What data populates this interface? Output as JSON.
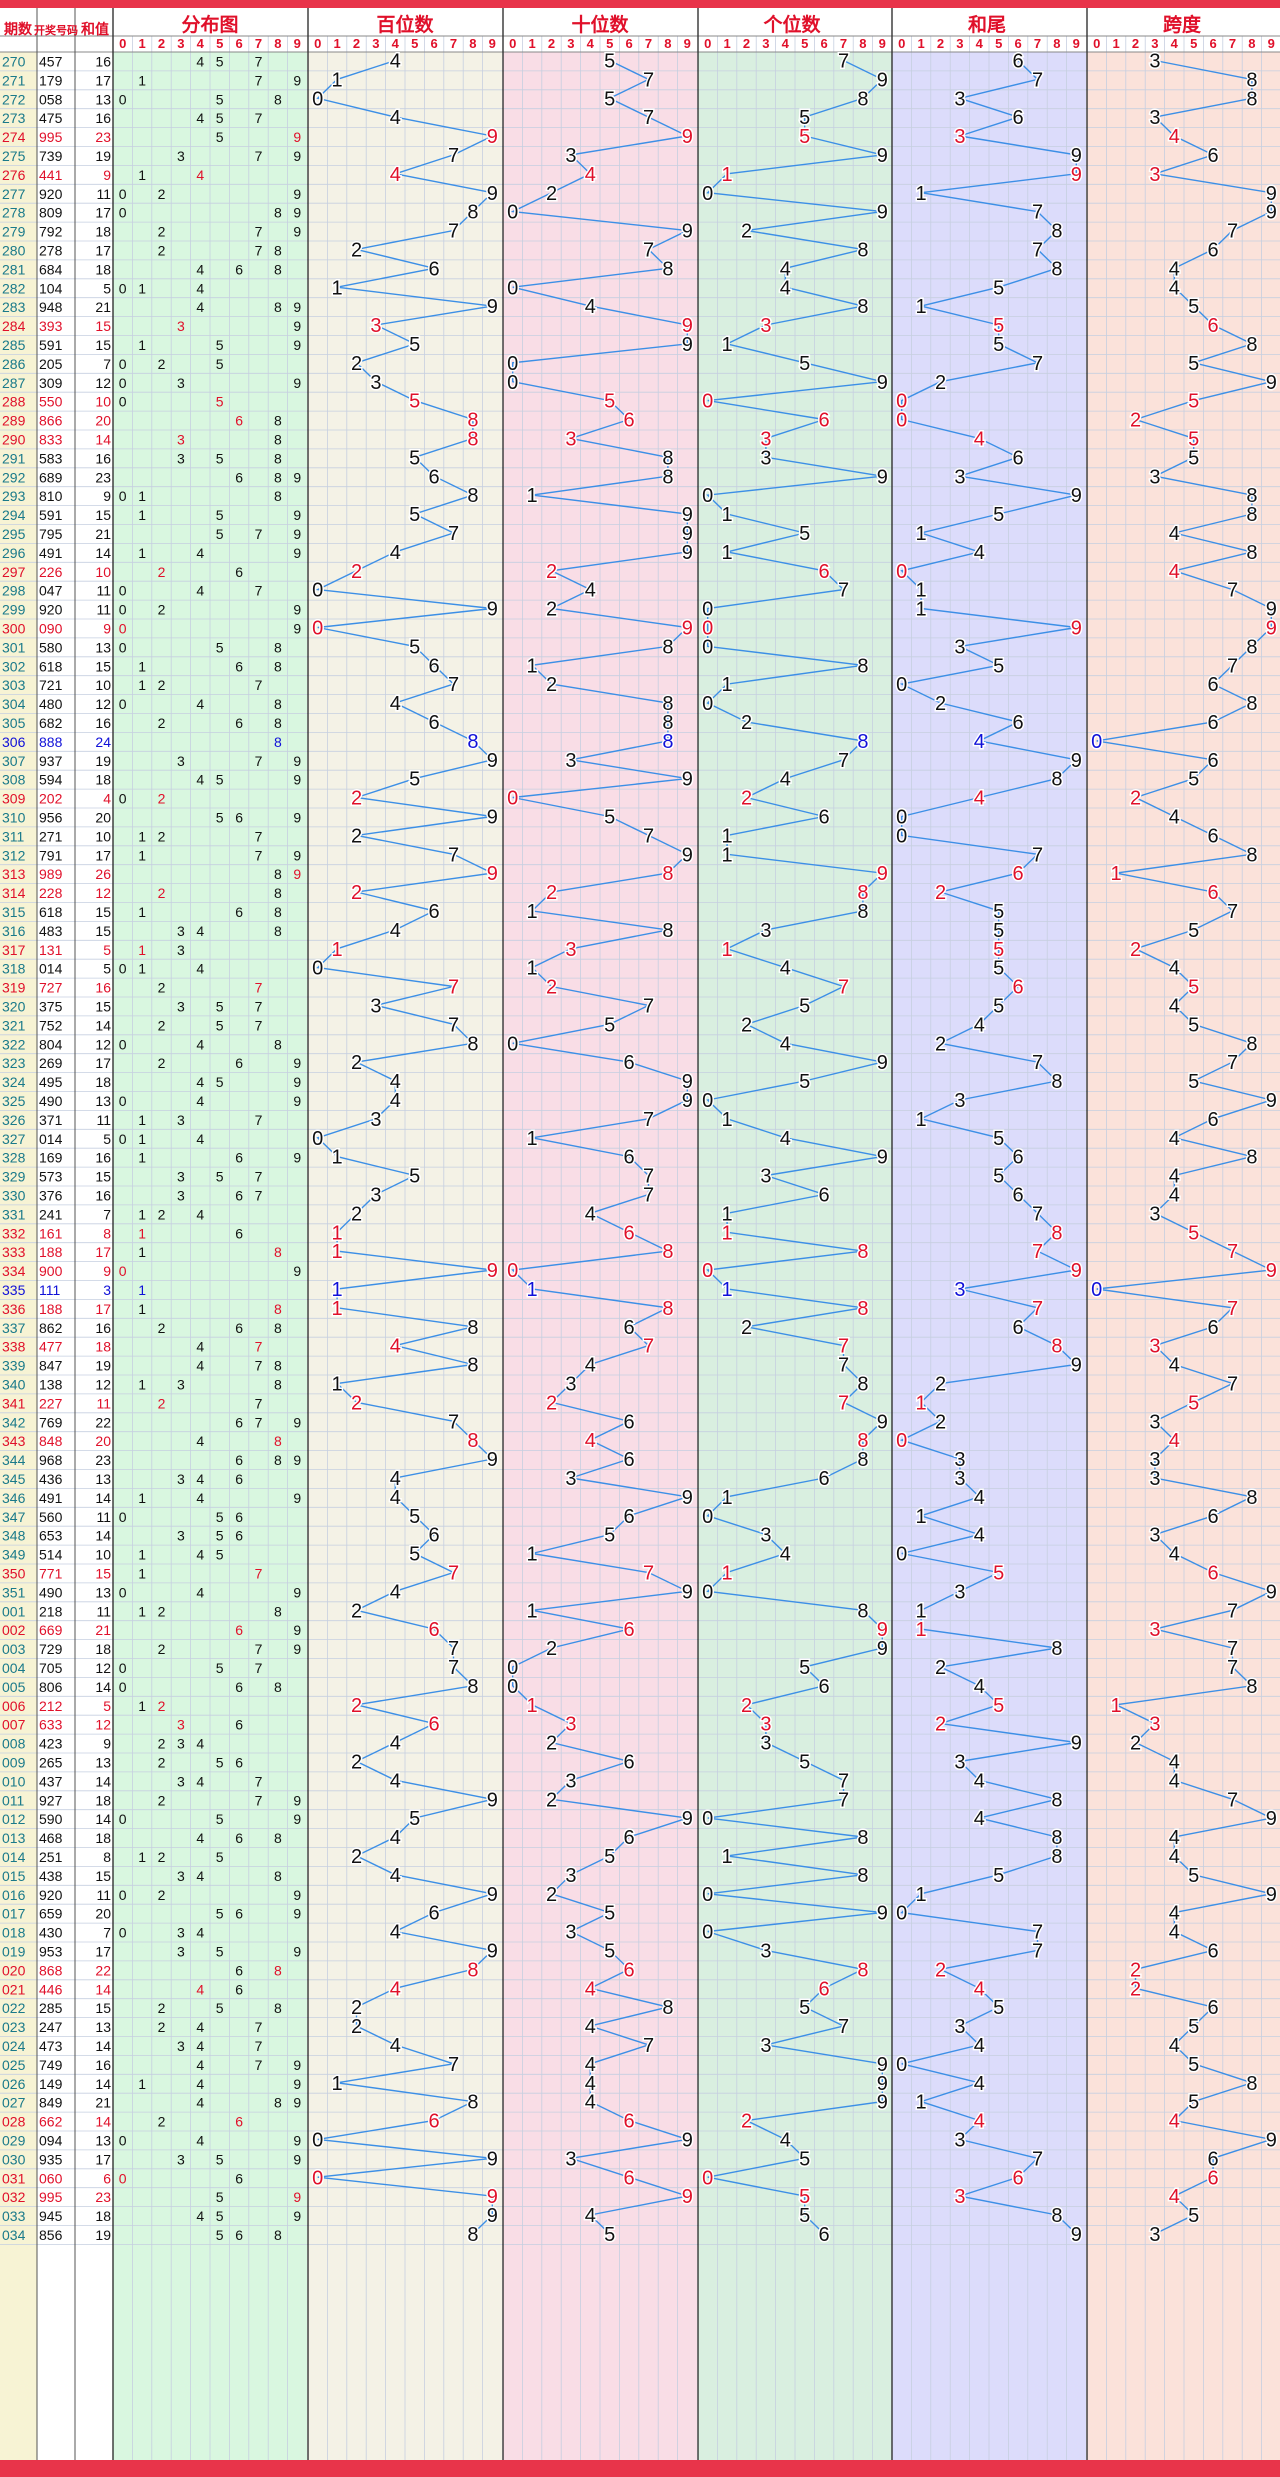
{
  "chart_data": {
    "type": "table",
    "headers": {
      "period": "期数",
      "number": "开奖号码",
      "sum": "和值",
      "dist": "分布图",
      "hundreds": "百位数",
      "tens": "十位数",
      "units": "个位数",
      "sum_tail": "和尾",
      "span": "跨度"
    },
    "digit_labels": [
      "0",
      "1",
      "2",
      "3",
      "4",
      "5",
      "6",
      "7",
      "8",
      "9"
    ],
    "periods": [
      "270",
      "271",
      "272",
      "273",
      "274",
      "275",
      "276",
      "277",
      "278",
      "279",
      "280",
      "281",
      "282",
      "283",
      "284",
      "285",
      "286",
      "287",
      "288",
      "289",
      "290",
      "291",
      "292",
      "293",
      "294",
      "295",
      "296",
      "297",
      "298",
      "299",
      "300",
      "301",
      "302",
      "303",
      "304",
      "305",
      "306",
      "307",
      "308",
      "309",
      "310",
      "311",
      "312",
      "313",
      "314",
      "315",
      "316",
      "317",
      "318",
      "319",
      "320",
      "321",
      "322",
      "323",
      "324",
      "325",
      "326",
      "327",
      "328",
      "329",
      "330",
      "331",
      "332",
      "333",
      "334",
      "335",
      "336",
      "337",
      "338",
      "339",
      "340",
      "341",
      "342",
      "343",
      "344",
      "345",
      "346",
      "347",
      "348",
      "349",
      "350",
      "351",
      "001",
      "002",
      "003",
      "004",
      "005",
      "006",
      "007",
      "008",
      "009",
      "010",
      "011",
      "012",
      "013",
      "014",
      "015",
      "016",
      "017",
      "018",
      "019",
      "020",
      "021",
      "022",
      "023",
      "024",
      "025",
      "026",
      "027",
      "028",
      "029",
      "030",
      "031",
      "032",
      "033",
      "034"
    ],
    "numbers": [
      "457",
      "179",
      "058",
      "475",
      "995",
      "739",
      "441",
      "920",
      "809",
      "792",
      "278",
      "684",
      "104",
      "948",
      "393",
      "591",
      "205",
      "309",
      "550",
      "866",
      "833",
      "583",
      "689",
      "810",
      "591",
      "795",
      "491",
      "226",
      "047",
      "920",
      "090",
      "580",
      "618",
      "721",
      "480",
      "682",
      "888",
      "937",
      "594",
      "202",
      "956",
      "271",
      "791",
      "989",
      "228",
      "618",
      "483",
      "131",
      "014",
      "727",
      "375",
      "752",
      "804",
      "269",
      "495",
      "490",
      "371",
      "014",
      "169",
      "573",
      "376",
      "241",
      "161",
      "188",
      "900",
      "111",
      "188",
      "862",
      "477",
      "847",
      "138",
      "227",
      "769",
      "848",
      "968",
      "436",
      "491",
      "560",
      "653",
      "514",
      "771",
      "490",
      "218",
      "669",
      "729",
      "705",
      "806",
      "212",
      "633",
      "423",
      "265",
      "437",
      "927",
      "590",
      "468",
      "251",
      "438",
      "920",
      "659",
      "430",
      "953",
      "868",
      "446",
      "285",
      "247",
      "473",
      "749",
      "149",
      "849",
      "662",
      "094",
      "935",
      "060",
      "995",
      "945",
      "856"
    ],
    "sums": [
      "16",
      "17",
      "13",
      "16",
      "23",
      "19",
      "9",
      "11",
      "17",
      "18",
      "17",
      "18",
      "5",
      "21",
      "15",
      "15",
      "7",
      "12",
      "10",
      "20",
      "14",
      "16",
      "23",
      "9",
      "15",
      "21",
      "14",
      "10",
      "11",
      "11",
      "9",
      "13",
      "15",
      "10",
      "12",
      "16",
      "24",
      "19",
      "18",
      "4",
      "20",
      "10",
      "17",
      "26",
      "12",
      "15",
      "15",
      "5",
      "5",
      "16",
      "15",
      "14",
      "12",
      "17",
      "18",
      "13",
      "11",
      "5",
      "16",
      "15",
      "16",
      "7",
      "8",
      "17",
      "9",
      "3",
      "17",
      "16",
      "18",
      "19",
      "12",
      "11",
      "22",
      "20",
      "23",
      "13",
      "14",
      "11",
      "14",
      "10",
      "15",
      "13",
      "11",
      "21",
      "18",
      "12",
      "14",
      "5",
      "12",
      "9",
      "13",
      "14",
      "18",
      "14",
      "18",
      "8",
      "15",
      "11",
      "20",
      "7",
      "17",
      "22",
      "14",
      "15",
      "13",
      "14",
      "16",
      "14",
      "21",
      "14",
      "13",
      "17",
      "6",
      "23",
      "18",
      "19"
    ]
  }
}
